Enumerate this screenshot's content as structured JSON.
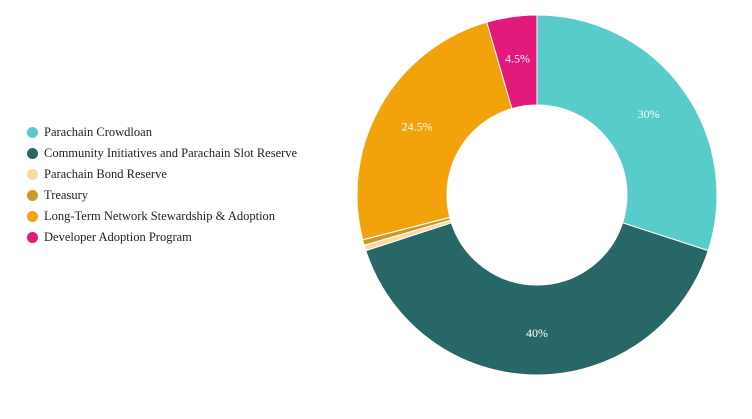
{
  "chart_data": {
    "type": "pie",
    "donut": true,
    "legend_position": "left",
    "series": [
      {
        "name": "Parachain Crowdloan",
        "value": 30,
        "label": "30%",
        "color": "#57cccb"
      },
      {
        "name": "Community Initiatives and Parachain Slot Reserve",
        "value": 40,
        "label": "40%",
        "color": "#286767"
      },
      {
        "name": "Parachain Bond Reserve",
        "value": 0.5,
        "label": "",
        "color": "#fbd9a0"
      },
      {
        "name": "Treasury",
        "value": 0.5,
        "label": "",
        "color": "#c89a27"
      },
      {
        "name": "Long-Term Network Stewardship & Adoption",
        "value": 24.5,
        "label": "24.5%",
        "color": "#f2a20a"
      },
      {
        "name": "Developer Adoption Program",
        "value": 4.5,
        "label": "4.5%",
        "color": "#e4197c"
      }
    ]
  }
}
